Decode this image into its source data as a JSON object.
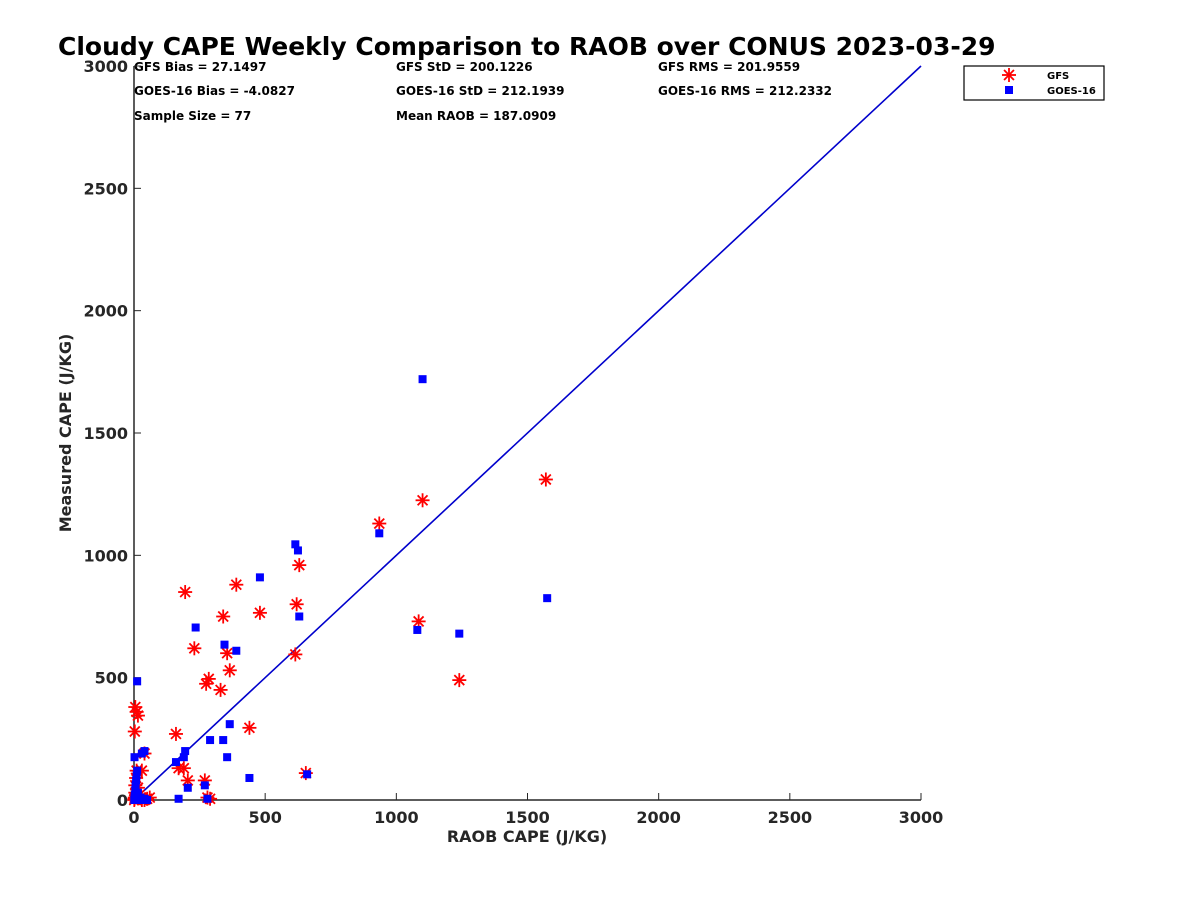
{
  "chart_data": {
    "type": "scatter",
    "title": "Cloudy CAPE Weekly Comparison to RAOB over CONUS 2023-03-29",
    "xlabel": "RAOB CAPE (J/KG)",
    "ylabel": "Measured CAPE (J/KG)",
    "xlim": [
      0,
      3000
    ],
    "ylim": [
      0,
      3000
    ],
    "xticks": [
      0,
      500,
      1000,
      1500,
      2000,
      2500,
      3000
    ],
    "yticks": [
      0,
      500,
      1000,
      1500,
      2000,
      2500,
      3000
    ],
    "grid": false,
    "legend_position": "top-right",
    "stats": [
      "GFS Bias = 27.1497",
      "GFS StD = 200.1226",
      "GFS RMS = 201.9559",
      "GOES-16 Bias = -4.0827",
      "GOES-16 StD = 212.1939",
      "GOES-16 RMS = 212.2332",
      "Sample Size = 77",
      "Mean RAOB = 187.0909"
    ],
    "reference_line": {
      "x": [
        0,
        3000
      ],
      "y": [
        0,
        3000
      ],
      "color": "#0000cc"
    },
    "series": [
      {
        "name": "GFS",
        "marker": "asterisk",
        "color": "#ff0000",
        "points": [
          [
            1,
            0
          ],
          [
            2,
            5
          ],
          [
            3,
            10
          ],
          [
            5,
            30
          ],
          [
            5,
            60
          ],
          [
            8,
            90
          ],
          [
            10,
            120
          ],
          [
            15,
            50
          ],
          [
            20,
            20
          ],
          [
            25,
            10
          ],
          [
            30,
            0
          ],
          [
            40,
            0
          ],
          [
            50,
            5
          ],
          [
            60,
            10
          ],
          [
            3,
            280
          ],
          [
            5,
            380
          ],
          [
            10,
            360
          ],
          [
            15,
            345
          ],
          [
            30,
            120
          ],
          [
            40,
            190
          ],
          [
            160,
            270
          ],
          [
            170,
            130
          ],
          [
            190,
            130
          ],
          [
            195,
            850
          ],
          [
            205,
            80
          ],
          [
            230,
            620
          ],
          [
            270,
            80
          ],
          [
            275,
            475
          ],
          [
            285,
            495
          ],
          [
            280,
            10
          ],
          [
            290,
            5
          ],
          [
            330,
            450
          ],
          [
            340,
            750
          ],
          [
            355,
            600
          ],
          [
            365,
            530
          ],
          [
            390,
            880
          ],
          [
            440,
            295
          ],
          [
            480,
            765
          ],
          [
            615,
            595
          ],
          [
            620,
            800
          ],
          [
            630,
            960
          ],
          [
            655,
            110
          ],
          [
            935,
            1130
          ],
          [
            1085,
            730
          ],
          [
            1100,
            1225
          ],
          [
            1240,
            490
          ],
          [
            1570,
            1310
          ]
        ]
      },
      {
        "name": "GOES-16",
        "marker": "square",
        "color": "#0000ff",
        "points": [
          [
            1,
            0
          ],
          [
            2,
            10
          ],
          [
            3,
            20
          ],
          [
            5,
            40
          ],
          [
            6,
            60
          ],
          [
            8,
            80
          ],
          [
            10,
            100
          ],
          [
            12,
            120
          ],
          [
            2,
            175
          ],
          [
            15,
            30
          ],
          [
            20,
            0
          ],
          [
            25,
            10
          ],
          [
            30,
            0
          ],
          [
            40,
            5
          ],
          [
            50,
            0
          ],
          [
            12,
            485
          ],
          [
            30,
            190
          ],
          [
            40,
            200
          ],
          [
            160,
            155
          ],
          [
            170,
            5
          ],
          [
            190,
            175
          ],
          [
            195,
            200
          ],
          [
            205,
            50
          ],
          [
            235,
            705
          ],
          [
            270,
            60
          ],
          [
            280,
            5
          ],
          [
            290,
            245
          ],
          [
            340,
            245
          ],
          [
            345,
            635
          ],
          [
            355,
            175
          ],
          [
            365,
            310
          ],
          [
            390,
            610
          ],
          [
            440,
            90
          ],
          [
            480,
            910
          ],
          [
            615,
            1045
          ],
          [
            625,
            1020
          ],
          [
            630,
            750
          ],
          [
            660,
            105
          ],
          [
            935,
            1090
          ],
          [
            1080,
            695
          ],
          [
            1100,
            1720
          ],
          [
            1240,
            680
          ],
          [
            1575,
            825
          ]
        ]
      }
    ]
  }
}
